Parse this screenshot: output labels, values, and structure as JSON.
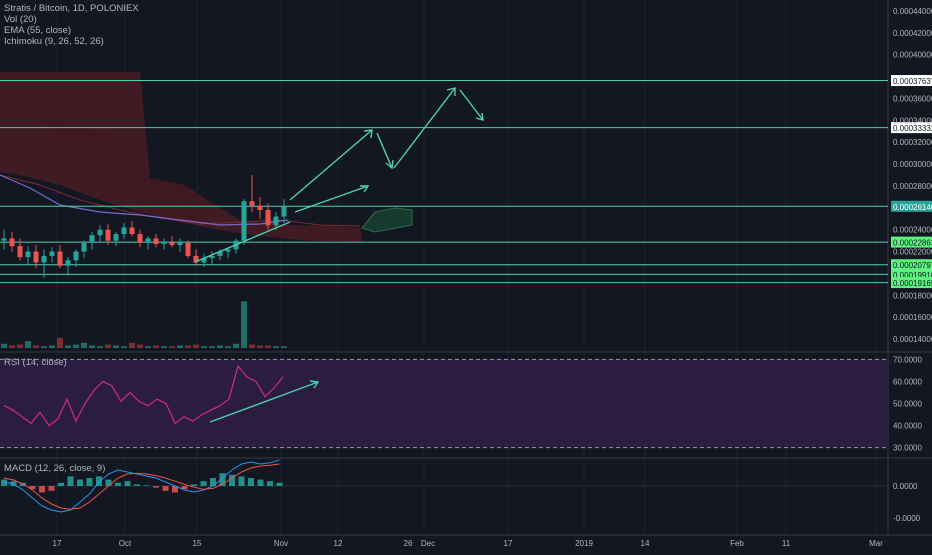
{
  "header": {
    "symbol_line": "Stratis / Bitcoin, 1D, POLONIEX",
    "indicators": [
      "Vol (20)",
      "EMA (55, close)",
      "Ichimoku (9, 26, 52, 26)"
    ]
  },
  "rsi": {
    "label": "RSI (14, close)",
    "upper": 70,
    "lower": 30,
    "ticks": [
      "70.0000",
      "60.0000",
      "50.0000",
      "40.0000",
      "30.0000"
    ]
  },
  "macd": {
    "label": "MACD (12, 26, close, 9)",
    "ticks": [
      "0.0000",
      "-0.0000"
    ]
  },
  "price_axis": {
    "ticks": [
      "0.00044000",
      "0.00042000",
      "0.00040000",
      "0.00036000",
      "0.00034000",
      "0.00032000",
      "0.00030000",
      "0.00028000",
      "0.00024000",
      "0.00022000",
      "0.00018000",
      "0.00016000",
      "0.00014000"
    ],
    "levels": [
      {
        "label": "0.00037637",
        "value": 0.00037637,
        "color": "#ffffff",
        "text": "#131722"
      },
      {
        "label": "0.00033332",
        "value": 0.00033332,
        "color": "#ffffff",
        "text": "#131722"
      },
      {
        "label": "0.00026140",
        "value": 0.0002614,
        "color": "#26a69a",
        "text": "#ffffff"
      },
      {
        "label": "0.00022863",
        "value": 0.00022863,
        "color": "#5cf27e",
        "text": "#131722"
      },
      {
        "label": "0.00020797",
        "value": 0.00020797,
        "color": "#5cf27e",
        "text": "#131722"
      },
      {
        "label": "0.00019910",
        "value": 0.0001991,
        "color": "#5cf27e",
        "text": "#131722"
      },
      {
        "label": "0.00019165",
        "value": 0.00019165,
        "color": "#5cf27e",
        "text": "#131722"
      }
    ]
  },
  "time_axis": {
    "ticks": [
      "17",
      "Oct",
      "15",
      "Nov",
      "12",
      "26",
      "Dec",
      "17",
      "2019",
      "14",
      "Feb",
      "11",
      "Mar"
    ]
  },
  "colors": {
    "bg": "#131722",
    "up": "#26a69a",
    "down": "#ef5350",
    "hline": "#4dd0b0",
    "cloud_down": "#4a1c24",
    "cloud_up": "#163b2e",
    "ema": "#7b68c8",
    "rsi": "#c2297a",
    "rsi_band": "#2a1d40",
    "arrow": "#4dd0b0"
  },
  "chart_data": {
    "type": "candlestick",
    "title": "Stratis / Bitcoin, 1D, POLONIEX",
    "x_ticks": [
      "17",
      "Oct",
      "15",
      "Nov",
      "12",
      "26",
      "Dec",
      "17",
      "2019",
      "14",
      "Feb",
      "11",
      "Mar"
    ],
    "y_range": [
      0.00013,
      0.00045
    ],
    "candles": [
      [
        0.00023,
        0.00024,
        0.000222,
        0.000232
      ],
      [
        0.000232,
        0.000238,
        0.00022,
        0.000225
      ],
      [
        0.000225,
        0.000232,
        0.000212,
        0.000215
      ],
      [
        0.000215,
        0.000225,
        0.000208,
        0.00022
      ],
      [
        0.00022,
        0.000226,
        0.000205,
        0.00021
      ],
      [
        0.00021,
        0.000222,
        0.000196,
        0.000216
      ],
      [
        0.000216,
        0.000224,
        0.00021,
        0.00022
      ],
      [
        0.00022,
        0.000226,
        0.000205,
        0.000207
      ],
      [
        0.000207,
        0.000215,
        0.000198,
        0.000212
      ],
      [
        0.000212,
        0.000222,
        0.000206,
        0.00022
      ],
      [
        0.00022,
        0.00023,
        0.000214,
        0.000228
      ],
      [
        0.000228,
        0.000238,
        0.000222,
        0.000235
      ],
      [
        0.000235,
        0.000244,
        0.000228,
        0.00024
      ],
      [
        0.00024,
        0.000245,
        0.000226,
        0.00023
      ],
      [
        0.00023,
        0.000238,
        0.000225,
        0.000236
      ],
      [
        0.000236,
        0.000246,
        0.000232,
        0.000242
      ],
      [
        0.000242,
        0.000248,
        0.000234,
        0.000236
      ],
      [
        0.000236,
        0.00024,
        0.000224,
        0.000228
      ],
      [
        0.000228,
        0.000234,
        0.000222,
        0.000232
      ],
      [
        0.000232,
        0.000236,
        0.000224,
        0.000227
      ],
      [
        0.000227,
        0.000232,
        0.000222,
        0.000229
      ],
      [
        0.000229,
        0.000234,
        0.000224,
        0.000226
      ],
      [
        0.000226,
        0.000232,
        0.00022,
        0.000228
      ],
      [
        0.000228,
        0.00023,
        0.000214,
        0.000216
      ],
      [
        0.000216,
        0.000222,
        0.000208,
        0.00021
      ],
      [
        0.00021,
        0.000218,
        0.000206,
        0.000214
      ],
      [
        0.000214,
        0.00022,
        0.000208,
        0.000216
      ],
      [
        0.000216,
        0.000222,
        0.000212,
        0.00022
      ],
      [
        0.00022,
        0.000224,
        0.000214,
        0.000222
      ],
      [
        0.000222,
        0.000232,
        0.000218,
        0.00023
      ],
      [
        0.00023,
        0.000268,
        0.000226,
        0.000266
      ],
      [
        0.000266,
        0.00029,
        0.000256,
        0.000262
      ],
      [
        0.000262,
        0.00027,
        0.00025,
        0.000258
      ],
      [
        0.000258,
        0.000264,
        0.00024,
        0.000244
      ],
      [
        0.000244,
        0.000256,
        0.00024,
        0.000252
      ],
      [
        0.000252,
        0.000268,
        0.000246,
        0.000261
      ]
    ],
    "volumes": [
      5,
      3,
      4,
      8,
      3,
      2,
      3,
      12,
      3,
      4,
      6,
      3,
      2,
      4,
      3,
      2,
      6,
      4,
      2,
      3,
      2,
      2,
      3,
      3,
      4,
      2,
      2,
      3,
      2,
      5,
      55,
      4,
      3,
      3,
      2,
      2
    ],
    "rsi_values": [
      49,
      47,
      44,
      41,
      46,
      40,
      43,
      52,
      42,
      50,
      56,
      60,
      58,
      51,
      55,
      51,
      49,
      52,
      50,
      41,
      44,
      42,
      45,
      47,
      49,
      52,
      67,
      62,
      60,
      53,
      57,
      62
    ],
    "macd_hist": [
      2,
      1.5,
      1,
      -1,
      -2,
      -1.5,
      1,
      3,
      2,
      2.5,
      3,
      2,
      1,
      1.5,
      0.5,
      0.2,
      -0.5,
      -1.5,
      -2,
      -1,
      0.5,
      1.5,
      2.5,
      4,
      3.5,
      3,
      2.5,
      2,
      1.5,
      1
    ],
    "macd_line": [
      1,
      0.5,
      -1,
      -3,
      -5,
      -6,
      -6.5,
      -6,
      -4,
      -2,
      1,
      3,
      4,
      3.5,
      3,
      2.5,
      2,
      1,
      0,
      -1,
      -1.5,
      -1,
      0,
      2,
      4,
      5.5,
      6,
      5.5,
      5.8,
      6.5
    ],
    "signal_line": [
      2,
      1.5,
      0.5,
      -1,
      -3,
      -4.5,
      -5.5,
      -5.8,
      -5.5,
      -4,
      -2,
      0,
      2,
      3,
      3.2,
      3,
      2.6,
      2,
      1.2,
      0.4,
      -0.3,
      -0.8,
      -0.6,
      0.5,
      2,
      3.5,
      4.5,
      5,
      5.2,
      5.5
    ]
  }
}
